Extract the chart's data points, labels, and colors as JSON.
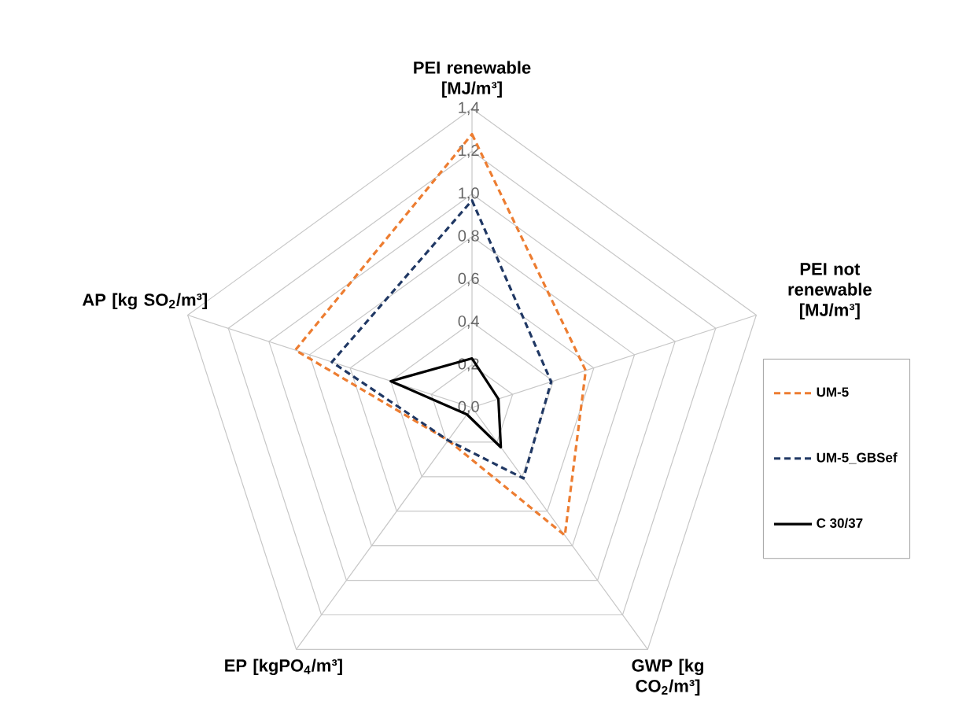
{
  "chart_data": {
    "type": "radar",
    "categories": [
      "PEI renewable [MJ/m³]",
      "PEI not renewable [MJ/m³]",
      "GWP [kg CO$_{2}$/m³]",
      "EP [kgPO$_{4}$/m³]",
      "AP [kg SO$_{2}$/m³]"
    ],
    "series": [
      {
        "name": "UM-5",
        "color": "#ed7d31",
        "line_style": "dashed",
        "values": [
          1.28,
          0.56,
          0.74,
          0.19,
          0.87
        ]
      },
      {
        "name": "UM-5_GBSef",
        "color": "#203864",
        "line_style": "dashed",
        "values": [
          0.97,
          0.39,
          0.41,
          0.19,
          0.69
        ]
      },
      {
        "name": "C 30/37",
        "color": "#000000",
        "line_style": "solid",
        "values": [
          0.23,
          0.13,
          0.23,
          0.04,
          0.4
        ]
      }
    ],
    "ylim": [
      0,
      1.4
    ],
    "yticks": [
      {
        "value": 0,
        "label": "0,0"
      },
      {
        "value": 0.2,
        "label": "0,2"
      },
      {
        "value": 0.4,
        "label": "0,4"
      },
      {
        "value": 0.6,
        "label": "0,6"
      },
      {
        "value": 0.8,
        "label": "0,8"
      },
      {
        "value": 1.0,
        "label": "1,0"
      },
      {
        "value": 1.2,
        "label": "1,2"
      },
      {
        "value": 1.4,
        "label": "1,4"
      }
    ],
    "grid": true,
    "legend": "right"
  }
}
